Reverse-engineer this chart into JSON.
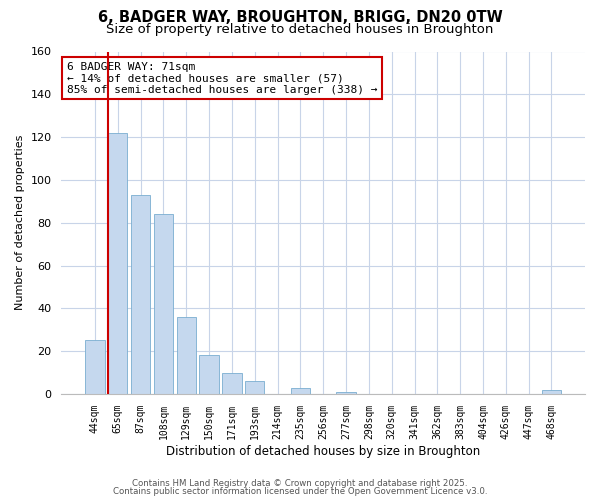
{
  "title": "6, BADGER WAY, BROUGHTON, BRIGG, DN20 0TW",
  "subtitle": "Size of property relative to detached houses in Broughton",
  "xlabel": "Distribution of detached houses by size in Broughton",
  "ylabel": "Number of detached properties",
  "bar_labels": [
    "44sqm",
    "65sqm",
    "87sqm",
    "108sqm",
    "129sqm",
    "150sqm",
    "171sqm",
    "193sqm",
    "214sqm",
    "235sqm",
    "256sqm",
    "277sqm",
    "298sqm",
    "320sqm",
    "341sqm",
    "362sqm",
    "383sqm",
    "404sqm",
    "426sqm",
    "447sqm",
    "468sqm"
  ],
  "bar_values": [
    25,
    122,
    93,
    84,
    36,
    18,
    10,
    6,
    0,
    3,
    0,
    1,
    0,
    0,
    0,
    0,
    0,
    0,
    0,
    0,
    2
  ],
  "bar_color": "#c5d8ee",
  "bar_edge_color": "#7aaed0",
  "vline_x": 1.0,
  "vline_color": "#cc0000",
  "ylim": [
    0,
    160
  ],
  "yticks": [
    0,
    20,
    40,
    60,
    80,
    100,
    120,
    140,
    160
  ],
  "annotation_title": "6 BADGER WAY: 71sqm",
  "annotation_line1": "← 14% of detached houses are smaller (57)",
  "annotation_line2": "85% of semi-detached houses are larger (338) →",
  "annotation_box_color": "#ffffff",
  "annotation_box_edge": "#cc0000",
  "footer1": "Contains HM Land Registry data © Crown copyright and database right 2025.",
  "footer2": "Contains public sector information licensed under the Open Government Licence v3.0.",
  "bg_color": "#ffffff",
  "grid_color": "#c8d4e8",
  "title_fontsize": 10.5,
  "subtitle_fontsize": 9.5
}
